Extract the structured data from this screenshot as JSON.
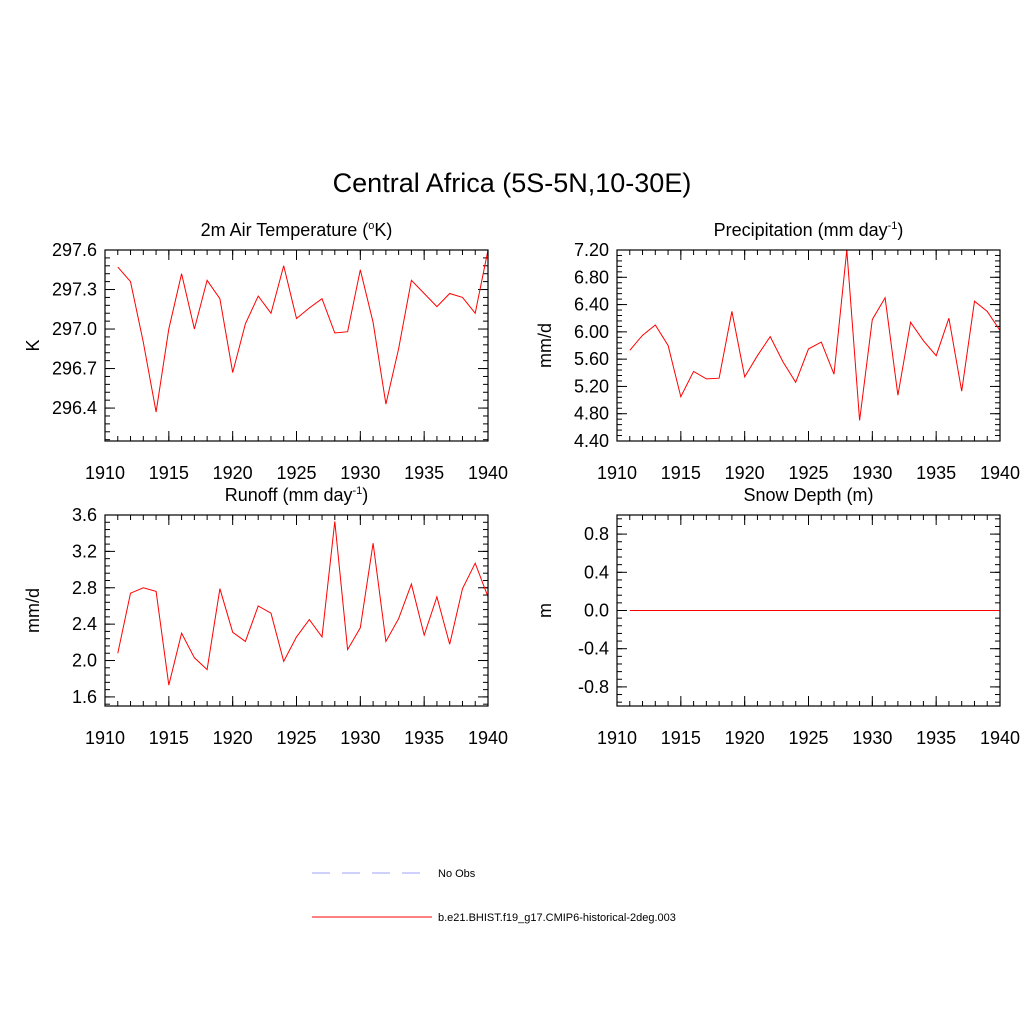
{
  "figure": {
    "title": "Central Africa (5S-5N,10-30E)",
    "colors": {
      "model": "#ff0000",
      "obs": "#a0a0ff",
      "frame": "#000000"
    }
  },
  "legend": [
    {
      "label": "No Obs",
      "style": "dashed",
      "color": "#a0a0ff"
    },
    {
      "label": "b.e21.BHIST.f19_g17.CMIP6-historical-2deg.003",
      "style": "solid",
      "color": "#ff0000"
    }
  ],
  "chart_data": [
    {
      "type": "line",
      "title": "2m Air Temperature (",
      "title_sup": "o",
      "title_end": "K)",
      "ylabel": "K",
      "xlim": [
        1910,
        1940
      ],
      "ylim": [
        296.15,
        297.6
      ],
      "xticks": [
        1910,
        1915,
        1920,
        1925,
        1930,
        1935,
        1940
      ],
      "yticks": [
        296.4,
        296.7,
        297.0,
        297.3,
        297.6
      ],
      "ytick_labels": [
        "296.4",
        "296.7",
        "297.0",
        "297.3",
        "297.6"
      ],
      "yminor": 0.06,
      "series": [
        {
          "x": [
            1911,
            1912,
            1913,
            1914,
            1915,
            1916,
            1917,
            1918,
            1919,
            1920,
            1921,
            1922,
            1923,
            1924,
            1925,
            1926,
            1927,
            1928,
            1929,
            1930,
            1931,
            1932,
            1933,
            1934,
            1935,
            1936,
            1937,
            1938,
            1939,
            1940
          ],
          "values": [
            297.47,
            297.36,
            296.9,
            296.37,
            297.0,
            297.42,
            297.0,
            297.37,
            297.23,
            296.67,
            297.04,
            297.25,
            297.12,
            297.48,
            297.08,
            297.16,
            297.23,
            296.97,
            296.98,
            297.45,
            297.05,
            296.43,
            296.85,
            297.37,
            297.27,
            297.17,
            297.27,
            297.24,
            297.12,
            297.6
          ]
        }
      ]
    },
    {
      "type": "line",
      "title": "Precipitation (mm day",
      "title_sup": "-1",
      "title_end": ")",
      "ylabel": "mm/d",
      "xlim": [
        1910,
        1940
      ],
      "ylim": [
        4.4,
        7.2
      ],
      "xticks": [
        1910,
        1915,
        1920,
        1925,
        1930,
        1935,
        1940
      ],
      "yticks": [
        4.4,
        4.8,
        5.2,
        5.6,
        6.0,
        6.4,
        6.8,
        7.2
      ],
      "ytick_labels": [
        "4.40",
        "4.80",
        "5.20",
        "5.60",
        "6.00",
        "6.40",
        "6.80",
        "7.20"
      ],
      "yminor": 0.08,
      "series": [
        {
          "x": [
            1911,
            1912,
            1913,
            1914,
            1915,
            1916,
            1917,
            1918,
            1919,
            1920,
            1921,
            1922,
            1923,
            1924,
            1925,
            1926,
            1927,
            1928,
            1929,
            1930,
            1931,
            1932,
            1933,
            1934,
            1935,
            1936,
            1937,
            1938,
            1939,
            1940
          ],
          "values": [
            5.73,
            5.95,
            6.1,
            5.8,
            5.05,
            5.42,
            5.31,
            5.32,
            6.3,
            5.34,
            5.65,
            5.93,
            5.56,
            5.26,
            5.75,
            5.85,
            5.38,
            7.2,
            4.7,
            6.18,
            6.5,
            5.07,
            6.14,
            5.87,
            5.65,
            6.2,
            5.13,
            6.45,
            6.3,
            6.02
          ]
        }
      ]
    },
    {
      "type": "line",
      "title": "Runoff (mm day",
      "title_sup": "-1",
      "title_end": ")",
      "ylabel": "mm/d",
      "xlim": [
        1910,
        1940
      ],
      "ylim": [
        1.5,
        3.6
      ],
      "xticks": [
        1910,
        1915,
        1920,
        1925,
        1930,
        1935,
        1940
      ],
      "yticks": [
        1.6,
        2.0,
        2.4,
        2.8,
        3.2,
        3.6
      ],
      "ytick_labels": [
        "1.6",
        "2.0",
        "2.4",
        "2.8",
        "3.2",
        "3.6"
      ],
      "yminor": 0.08,
      "series": [
        {
          "x": [
            1911,
            1912,
            1913,
            1914,
            1915,
            1916,
            1917,
            1918,
            1919,
            1920,
            1921,
            1922,
            1923,
            1924,
            1925,
            1926,
            1927,
            1928,
            1929,
            1930,
            1931,
            1932,
            1933,
            1934,
            1935,
            1936,
            1937,
            1938,
            1939,
            1940
          ],
          "values": [
            2.08,
            2.74,
            2.8,
            2.76,
            1.73,
            2.3,
            2.03,
            1.9,
            2.79,
            2.31,
            2.21,
            2.6,
            2.52,
            1.99,
            2.26,
            2.45,
            2.26,
            3.53,
            2.12,
            2.36,
            3.29,
            2.21,
            2.46,
            2.84,
            2.28,
            2.7,
            2.18,
            2.79,
            3.07,
            2.7
          ]
        }
      ]
    },
    {
      "type": "line",
      "title": "Snow Depth (m)",
      "title_sup": "",
      "title_end": "",
      "ylabel": "m",
      "xlim": [
        1910,
        1940
      ],
      "ylim": [
        -1.0,
        1.0
      ],
      "xticks": [
        1910,
        1915,
        1920,
        1925,
        1930,
        1935,
        1940
      ],
      "yticks": [
        -0.8,
        -0.4,
        0.0,
        0.4,
        0.8
      ],
      "ytick_labels": [
        "-0.8",
        "-0.4",
        "0.0",
        "0.4",
        "0.8"
      ],
      "yminor": 0.08,
      "series": [
        {
          "x": [
            1911,
            1912,
            1913,
            1914,
            1915,
            1916,
            1917,
            1918,
            1919,
            1920,
            1921,
            1922,
            1923,
            1924,
            1925,
            1926,
            1927,
            1928,
            1929,
            1930,
            1931,
            1932,
            1933,
            1934,
            1935,
            1936,
            1937,
            1938,
            1939,
            1940
          ],
          "values": [
            0,
            0,
            0,
            0,
            0,
            0,
            0,
            0,
            0,
            0,
            0,
            0,
            0,
            0,
            0,
            0,
            0,
            0,
            0,
            0,
            0,
            0,
            0,
            0,
            0,
            0,
            0,
            0,
            0,
            0
          ]
        }
      ]
    }
  ]
}
